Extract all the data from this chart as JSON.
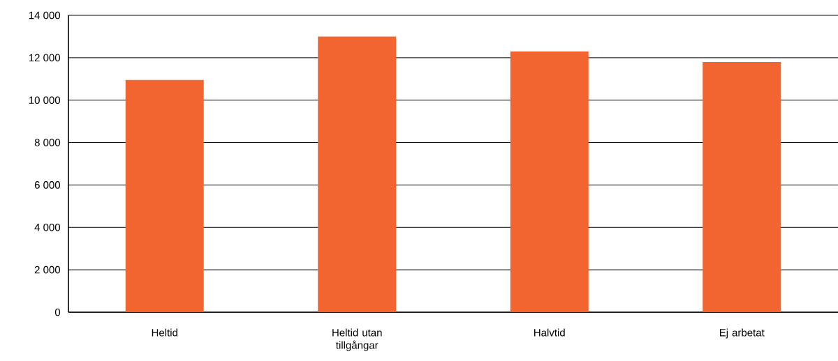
{
  "chart_data": {
    "type": "bar",
    "categories": [
      "Heltid",
      "Heltid utan tillgångar",
      "Halvtid",
      "Ej arbetat"
    ],
    "values": [
      10950,
      13000,
      12300,
      11800
    ],
    "color": "#f26531",
    "ylim": [
      0,
      14000
    ],
    "yticks": [
      0,
      {
        "value": 2000,
        "label": "2 000"
      },
      {
        "value": 4000,
        "label": "4 000"
      },
      {
        "value": 6000,
        "label": "6 000"
      },
      {
        "value": 8000,
        "label": "8 000"
      },
      {
        "value": 10000,
        "label": "10 000"
      },
      {
        "value": 12000,
        "label": "12 000"
      },
      {
        "value": 14000,
        "label": "14 000"
      }
    ],
    "grid": "y"
  }
}
